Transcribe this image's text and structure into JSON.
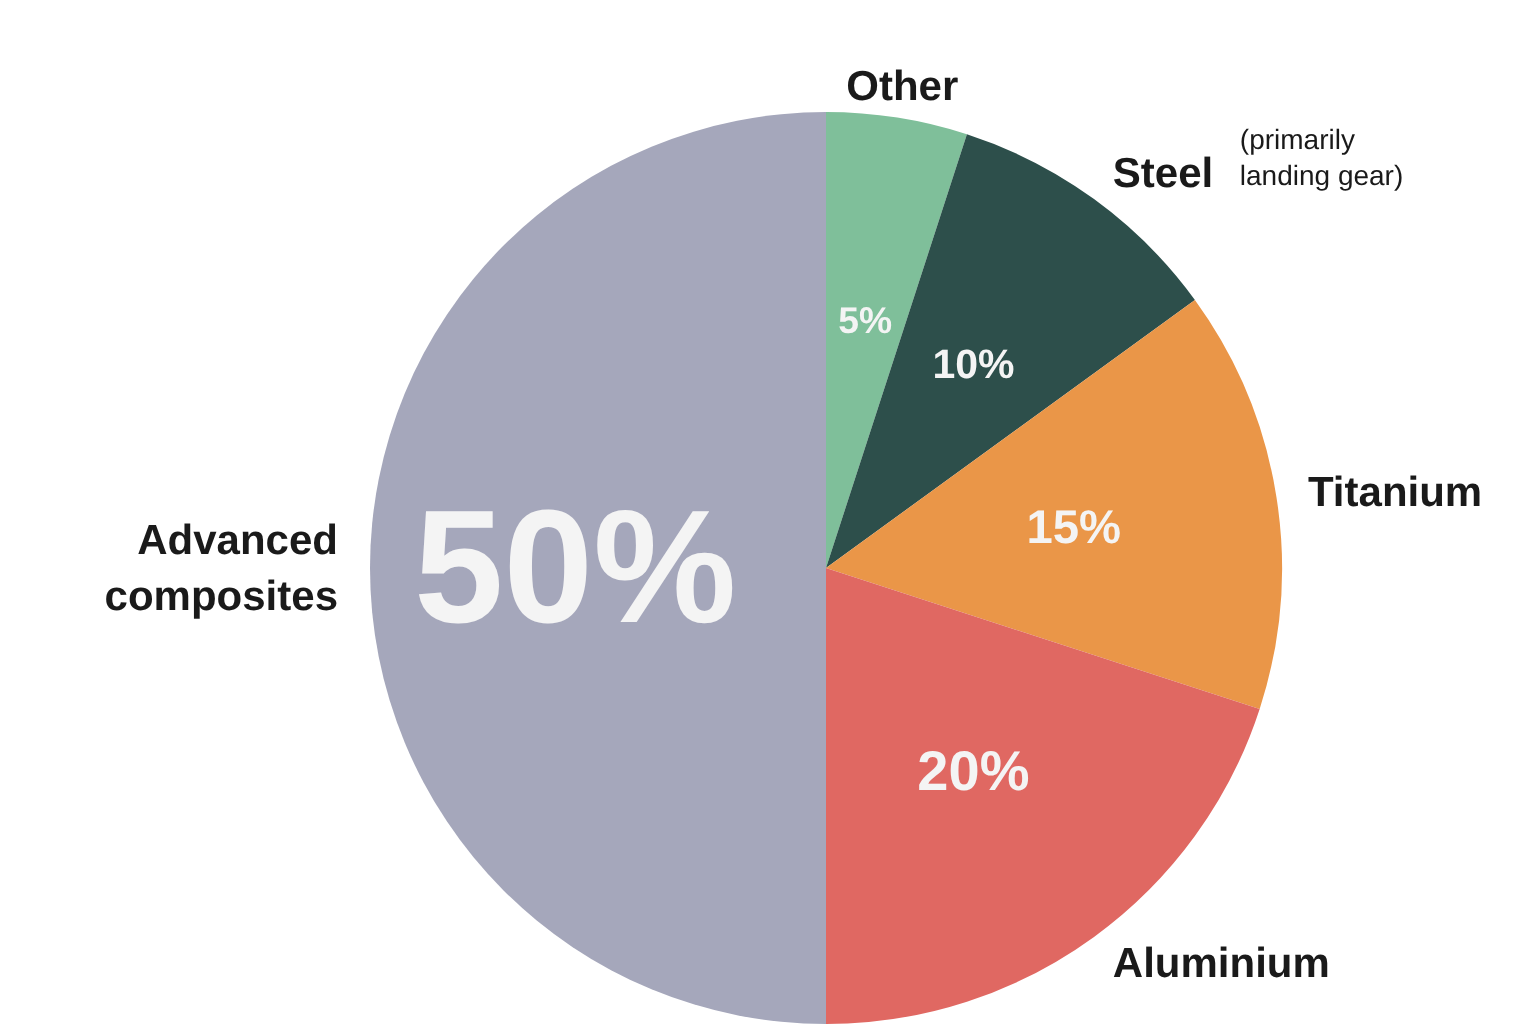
{
  "chart_data": {
    "type": "pie",
    "categories": [
      "Other",
      "Steel",
      "Titanium",
      "Aluminium",
      "Advanced composites"
    ],
    "values": [
      5,
      10,
      15,
      20,
      50
    ],
    "colors": [
      "#7fbf9a",
      "#2d4f4b",
      "#ea9648",
      "#e06862",
      "#a5a7bb"
    ],
    "value_labels": [
      "5%",
      "10%",
      "15%",
      "20%",
      "50%"
    ],
    "annotations": [
      {
        "text": "(primarily landing gear)",
        "x": "Steel"
      }
    ]
  }
}
